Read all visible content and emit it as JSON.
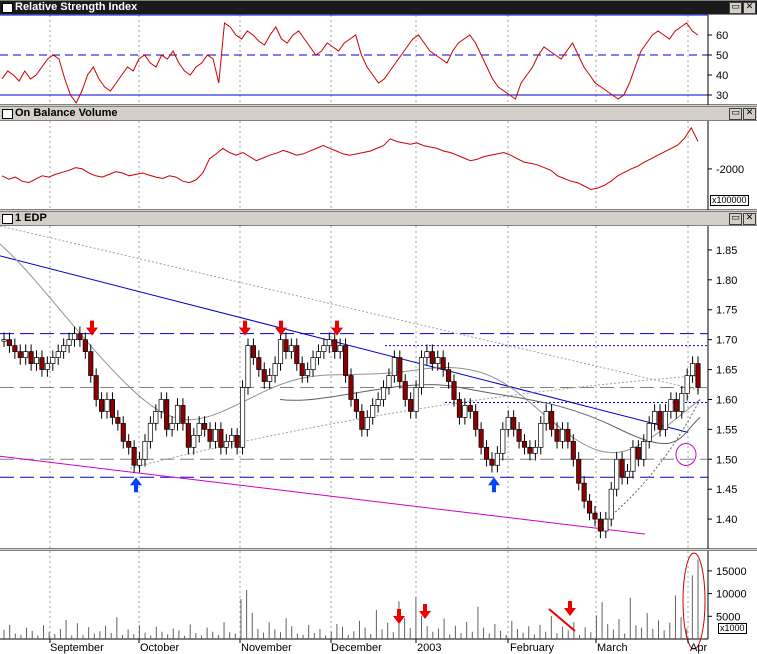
{
  "panels": {
    "rsi": {
      "title": "Relative Strength Index"
    },
    "obv": {
      "title": "On Balance Volume",
      "unit": "x100000"
    },
    "price": {
      "title": "1 EDP"
    },
    "volume": {
      "unit": "x1000"
    }
  },
  "window_buttons": {
    "minimize": "▭",
    "close": "✕"
  },
  "x_axis": {
    "months": [
      "September",
      "October",
      "November",
      "December",
      "2003",
      "February",
      "March",
      "Apr"
    ]
  },
  "colors": {
    "up_candle": "#ffffff",
    "down_candle": "#8b0000",
    "rsi_line": "#cc0000",
    "trend_blue": "#0000cc",
    "support_magenta": "#cc00cc",
    "arrow_red": "#ee0000",
    "arrow_blue": "#0044ff"
  },
  "icons": {
    "arrow_down": "red-down-arrow-icon",
    "arrow_up": "blue-up-arrow-icon",
    "circle": "highlight-circle-icon"
  },
  "chart_data": [
    {
      "type": "line",
      "name": "Relative Strength Index",
      "y_ticks": [
        30,
        40,
        50,
        60
      ],
      "ylim": [
        25,
        70
      ],
      "reference_levels": [
        30,
        50,
        70
      ],
      "values": [
        38,
        42,
        40,
        37,
        42,
        38,
        40,
        44,
        48,
        50,
        48,
        38,
        30,
        26,
        32,
        40,
        44,
        38,
        34,
        32,
        36,
        40,
        44,
        42,
        48,
        50,
        46,
        44,
        50,
        48,
        52,
        46,
        42,
        40,
        44,
        46,
        50,
        48,
        36,
        66,
        64,
        60,
        58,
        62,
        60,
        57,
        55,
        60,
        64,
        58,
        56,
        60,
        62,
        58,
        54,
        50,
        52,
        56,
        54,
        52,
        56,
        58,
        60,
        50,
        44,
        40,
        36,
        38,
        42,
        46,
        50,
        54,
        58,
        60,
        56,
        52,
        50,
        48,
        46,
        52,
        56,
        58,
        60,
        56,
        50,
        44,
        38,
        34,
        32,
        30,
        28,
        36,
        40,
        44,
        50,
        54,
        52,
        50,
        48,
        52,
        56,
        50,
        44,
        40,
        36,
        34,
        32,
        30,
        28,
        30,
        36,
        44,
        52,
        56,
        60,
        62,
        60,
        58,
        62,
        64,
        66,
        62,
        60
      ]
    },
    {
      "type": "line",
      "name": "On Balance Volume",
      "y_ticks": [
        -2000
      ],
      "ylim": [
        -2600,
        -1300
      ],
      "values": [
        -2100,
        -2150,
        -2120,
        -2180,
        -2200,
        -2150,
        -2100,
        -2120,
        -2080,
        -2050,
        -2020,
        -1980,
        -2000,
        -2060,
        -2100,
        -2120,
        -2080,
        -2040,
        -2060,
        -2100,
        -2080,
        -2060,
        -2090,
        -2120,
        -2140,
        -2100,
        -2120,
        -2180,
        -2200,
        -2160,
        -2060,
        -1850,
        -1780,
        -1700,
        -1760,
        -1800,
        -1760,
        -1820,
        -1880,
        -1840,
        -1800,
        -1770,
        -1730,
        -1760,
        -1800,
        -1780,
        -1740,
        -1700,
        -1660,
        -1700,
        -1740,
        -1780,
        -1800,
        -1780,
        -1760,
        -1740,
        -1700,
        -1660,
        -1560,
        -1600,
        -1620,
        -1640,
        -1620,
        -1660,
        -1680,
        -1700,
        -1740,
        -1760,
        -1800,
        -1840,
        -1880,
        -1860,
        -1820,
        -1800,
        -1780,
        -1760,
        -1800,
        -1850,
        -1900,
        -1920,
        -1940,
        -1980,
        -2020,
        -2100,
        -2140,
        -2180,
        -2200,
        -2250,
        -2300,
        -2280,
        -2240,
        -2180,
        -2100,
        -2050,
        -2000,
        -1960,
        -1900,
        -1850,
        -1800,
        -1750,
        -1700,
        -1650,
        -1550,
        -1400,
        -1600
      ]
    },
    {
      "type": "candlestick",
      "name": "1 EDP",
      "y_ticks": [
        1.4,
        1.45,
        1.5,
        1.55,
        1.6,
        1.65,
        1.7,
        1.75,
        1.8,
        1.85
      ],
      "ylim": [
        1.35,
        1.89
      ],
      "resistance_levels": [
        1.71,
        1.69,
        1.62,
        1.59
      ],
      "support_levels": [
        1.5,
        1.47
      ],
      "close": [
        1.7,
        1.69,
        1.68,
        1.67,
        1.68,
        1.66,
        1.67,
        1.65,
        1.66,
        1.67,
        1.68,
        1.69,
        1.7,
        1.71,
        1.7,
        1.68,
        1.64,
        1.6,
        1.58,
        1.6,
        1.57,
        1.56,
        1.53,
        1.52,
        1.49,
        1.5,
        1.53,
        1.56,
        1.58,
        1.6,
        1.55,
        1.56,
        1.59,
        1.56,
        1.52,
        1.54,
        1.56,
        1.55,
        1.53,
        1.55,
        1.52,
        1.53,
        1.54,
        1.52,
        1.62,
        1.69,
        1.67,
        1.65,
        1.63,
        1.64,
        1.66,
        1.7,
        1.68,
        1.69,
        1.66,
        1.64,
        1.65,
        1.67,
        1.68,
        1.69,
        1.7,
        1.68,
        1.69,
        1.64,
        1.6,
        1.58,
        1.55,
        1.57,
        1.59,
        1.6,
        1.62,
        1.64,
        1.67,
        1.63,
        1.6,
        1.58,
        1.62,
        1.67,
        1.68,
        1.66,
        1.67,
        1.65,
        1.63,
        1.6,
        1.57,
        1.59,
        1.58,
        1.55,
        1.52,
        1.5,
        1.49,
        1.51,
        1.55,
        1.57,
        1.55,
        1.53,
        1.52,
        1.51,
        1.52,
        1.56,
        1.58,
        1.55,
        1.53,
        1.55,
        1.53,
        1.5,
        1.46,
        1.43,
        1.41,
        1.4,
        1.38,
        1.4,
        1.45,
        1.5,
        1.47,
        1.48,
        1.52,
        1.5,
        1.53,
        1.56,
        1.58,
        1.55,
        1.58,
        1.6,
        1.58,
        1.61,
        1.64,
        1.66,
        1.62
      ]
    },
    {
      "type": "bar",
      "name": "Volume",
      "y_ticks": [
        5000,
        10000,
        15000
      ],
      "ylim": [
        0,
        18500
      ],
      "values": [
        2000,
        3100,
        1200,
        900,
        2500,
        1800,
        800,
        3000,
        1500,
        1100,
        2200,
        4200,
        800,
        3500,
        900,
        2600,
        1200,
        1700,
        2900,
        1300,
        4800,
        900,
        2100,
        1100,
        3000,
        1400,
        800,
        2700,
        1600,
        1000,
        2300,
        1900,
        700,
        3200,
        1300,
        800,
        2500,
        1600,
        900,
        3700,
        1500,
        1200,
        8800,
        10800,
        5800,
        2200,
        1400,
        3700,
        2100,
        1500,
        4600,
        2800,
        1200,
        900,
        3100,
        1300,
        2200,
        800,
        1600,
        3300,
        2700,
        900,
        1700,
        4000,
        2500,
        1100,
        6400,
        2100,
        3600,
        1500,
        8300,
        4600,
        2400,
        9200,
        5100,
        2800,
        1600,
        2300,
        4500,
        1000,
        2900,
        1300,
        3800,
        1600,
        7100,
        2500,
        1200,
        3300,
        1800,
        900,
        4000,
        2200,
        1400,
        2800,
        1000,
        3100,
        1600,
        5100,
        1300,
        2700,
        1900,
        3700,
        900,
        2600,
        1500,
        5200,
        8100,
        3300,
        2100,
        4400,
        1200,
        9100,
        3000,
        2500,
        5700,
        2200,
        4100,
        1900,
        3600,
        9600,
        4800,
        2300,
        14000,
        17500
      ]
    }
  ]
}
